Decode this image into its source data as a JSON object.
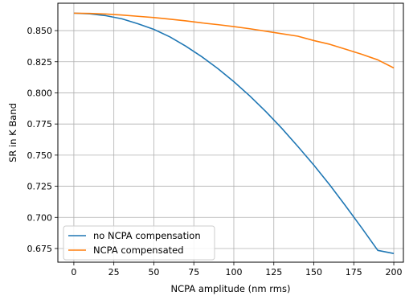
{
  "chart_data": {
    "type": "line",
    "xlabel": "NCPA amplitude (nm rms)",
    "ylabel": "SR in K Band",
    "xlim": [
      -10,
      206
    ],
    "ylim": [
      0.664,
      0.872
    ],
    "x_ticks": [
      "0",
      "25",
      "50",
      "75",
      "100",
      "125",
      "150",
      "175",
      "200"
    ],
    "y_ticks": [
      "0.675",
      "0.700",
      "0.725",
      "0.750",
      "0.775",
      "0.800",
      "0.825",
      "0.850"
    ],
    "grid": true,
    "legend": "lower-left",
    "series": [
      {
        "name": "no NCPA compensation",
        "color": "#1f77b4",
        "x": [
          0,
          10,
          20,
          30,
          40,
          50,
          60,
          70,
          80,
          90,
          100,
          110,
          120,
          130,
          140,
          150,
          160,
          170,
          180,
          190,
          200
        ],
        "y": [
          0.864,
          0.8635,
          0.862,
          0.8595,
          0.8555,
          0.851,
          0.845,
          0.8375,
          0.829,
          0.8195,
          0.809,
          0.7975,
          0.785,
          0.7715,
          0.757,
          0.742,
          0.726,
          0.709,
          0.6915,
          0.6735,
          0.671
        ]
      },
      {
        "name": "NCPA compensated",
        "color": "#ff7f0e",
        "x": [
          0,
          10,
          20,
          30,
          40,
          50,
          60,
          70,
          80,
          90,
          100,
          110,
          120,
          130,
          140,
          150,
          160,
          170,
          180,
          190,
          200
        ],
        "y": [
          0.864,
          0.8638,
          0.8633,
          0.8625,
          0.8615,
          0.8605,
          0.8592,
          0.8578,
          0.8562,
          0.8548,
          0.8532,
          0.8515,
          0.8495,
          0.8475,
          0.8455,
          0.842,
          0.839,
          0.835,
          0.831,
          0.8265,
          0.82
        ]
      }
    ]
  }
}
